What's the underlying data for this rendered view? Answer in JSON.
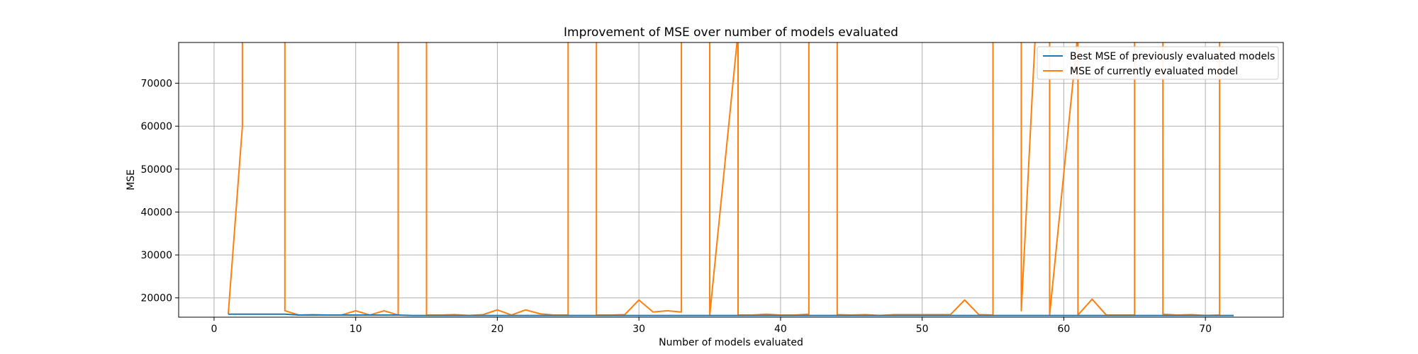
{
  "chart_data": {
    "type": "line",
    "title": "Improvement of MSE over number of models evaluated",
    "xlabel": "Number of models evaluated",
    "ylabel": "MSE",
    "xlim": [
      -2.5,
      75.5
    ],
    "ylim": [
      15500,
      79500
    ],
    "xticks": [
      0,
      10,
      20,
      30,
      40,
      50,
      60,
      70
    ],
    "yticks": [
      20000,
      30000,
      40000,
      50000,
      60000,
      70000
    ],
    "grid": true,
    "legend_position": "top-right",
    "colors": {
      "best": "#1f77b4",
      "current": "#ff7f0e"
    },
    "series": [
      {
        "name": "Best MSE of previously evaluated models",
        "x": [
          1,
          5,
          6,
          13,
          14,
          72
        ],
        "y": [
          16200,
          16200,
          16000,
          16000,
          15900,
          15900
        ]
      },
      {
        "name": "MSE of currently evaluated model",
        "x": [
          1,
          2,
          2,
          5,
          5,
          6,
          7,
          8,
          9,
          10,
          11,
          12,
          13,
          13,
          14,
          15,
          15,
          16,
          17,
          18,
          19,
          20,
          21,
          22,
          23,
          24,
          25,
          25,
          27,
          27,
          28,
          29,
          30,
          31,
          32,
          33,
          33,
          35,
          35,
          37,
          37,
          38,
          39,
          40,
          41,
          42,
          42,
          44,
          44,
          45,
          46,
          47,
          48,
          49,
          50,
          51,
          52,
          53,
          54,
          55,
          55,
          57,
          57,
          58,
          59,
          59,
          61,
          61,
          62,
          63,
          64,
          65,
          65,
          67,
          67,
          68,
          69,
          70,
          71,
          71
        ],
        "y": [
          16200,
          60000,
          82000,
          82000,
          17000,
          16000,
          16100,
          16000,
          16000,
          17000,
          16000,
          17000,
          16000,
          82000,
          82000,
          82000,
          16000,
          16000,
          16100,
          15900,
          16100,
          17200,
          16000,
          17200,
          16300,
          16000,
          16000,
          82000,
          82000,
          16000,
          16000,
          16100,
          19500,
          16700,
          17000,
          16700,
          82000,
          82000,
          16000,
          82000,
          16000,
          16000,
          16200,
          16000,
          16000,
          16200,
          82000,
          82000,
          16100,
          16000,
          16100,
          15900,
          16100,
          16100,
          16100,
          16100,
          16100,
          19500,
          16100,
          16000,
          82000,
          82000,
          17000,
          82000,
          82000,
          16000,
          82000,
          16000,
          19700,
          16000,
          16000,
          16000,
          82000,
          82000,
          16200,
          16000,
          16100,
          15900,
          16000,
          82000
        ]
      }
    ]
  }
}
